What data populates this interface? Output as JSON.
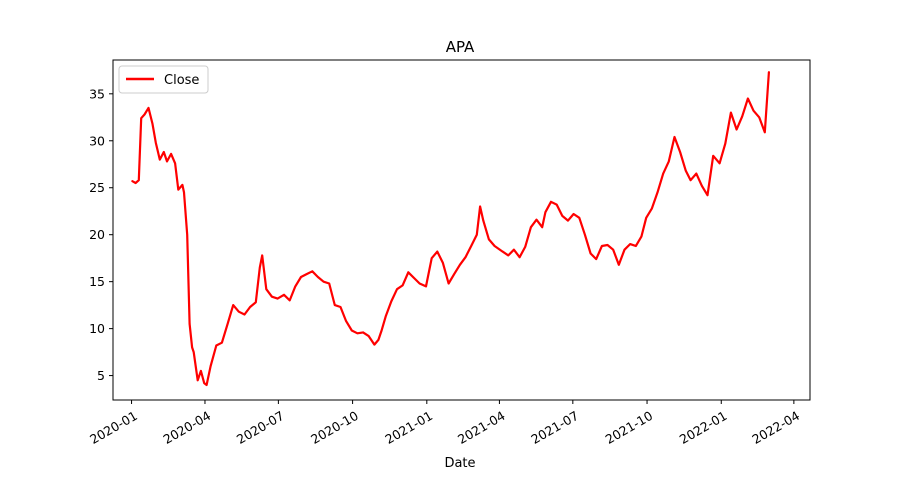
{
  "chart_data": {
    "type": "line",
    "title": "APA",
    "xlabel": "Date",
    "ylabel": "",
    "x_tick_labels": [
      "2020-01",
      "2020-04",
      "2020-07",
      "2020-10",
      "2021-01",
      "2021-04",
      "2021-07",
      "2021-10",
      "2022-01",
      "2022-04"
    ],
    "y_tick_labels": [
      "5",
      "10",
      "15",
      "20",
      "25",
      "30",
      "35"
    ],
    "y_ticks": [
      5,
      10,
      15,
      20,
      25,
      30,
      35
    ],
    "ylim": [
      2.4,
      38.6
    ],
    "xlim": [
      "2019-12-09",
      "2022-04-21"
    ],
    "legend_position": "upper-left",
    "grid": false,
    "series": [
      {
        "name": "Close",
        "color": "#ff0000",
        "x": [
          "2020-01-02",
          "2020-01-06",
          "2020-01-10",
          "2020-01-13",
          "2020-01-17",
          "2020-01-22",
          "2020-01-27",
          "2020-01-31",
          "2020-02-05",
          "2020-02-10",
          "2020-02-14",
          "2020-02-19",
          "2020-02-24",
          "2020-02-28",
          "2020-03-04",
          "2020-03-06",
          "2020-03-10",
          "2020-03-13",
          "2020-03-16",
          "2020-03-18",
          "2020-03-23",
          "2020-03-27",
          "2020-03-31",
          "2020-04-03",
          "2020-04-08",
          "2020-04-15",
          "2020-04-22",
          "2020-04-29",
          "2020-05-06",
          "2020-05-13",
          "2020-05-20",
          "2020-05-27",
          "2020-06-03",
          "2020-06-08",
          "2020-06-11",
          "2020-06-16",
          "2020-06-23",
          "2020-06-30",
          "2020-07-08",
          "2020-07-15",
          "2020-07-22",
          "2020-07-29",
          "2020-08-05",
          "2020-08-12",
          "2020-08-19",
          "2020-08-26",
          "2020-09-02",
          "2020-09-09",
          "2020-09-16",
          "2020-09-23",
          "2020-09-30",
          "2020-10-07",
          "2020-10-14",
          "2020-10-21",
          "2020-10-28",
          "2020-11-02",
          "2020-11-06",
          "2020-11-11",
          "2020-11-18",
          "2020-11-25",
          "2020-12-02",
          "2020-12-09",
          "2020-12-16",
          "2020-12-23",
          "2020-12-31",
          "2021-01-07",
          "2021-01-14",
          "2021-01-21",
          "2021-01-28",
          "2021-02-04",
          "2021-02-11",
          "2021-02-18",
          "2021-02-25",
          "2021-03-04",
          "2021-03-08",
          "2021-03-12",
          "2021-03-19",
          "2021-03-26",
          "2021-04-05",
          "2021-04-12",
          "2021-04-19",
          "2021-04-26",
          "2021-05-03",
          "2021-05-10",
          "2021-05-17",
          "2021-05-24",
          "2021-05-28",
          "2021-06-04",
          "2021-06-11",
          "2021-06-18",
          "2021-06-25",
          "2021-07-02",
          "2021-07-09",
          "2021-07-16",
          "2021-07-23",
          "2021-07-30",
          "2021-08-06",
          "2021-08-13",
          "2021-08-20",
          "2021-08-27",
          "2021-09-03",
          "2021-09-10",
          "2021-09-17",
          "2021-09-24",
          "2021-09-30",
          "2021-10-07",
          "2021-10-14",
          "2021-10-21",
          "2021-10-28",
          "2021-11-04",
          "2021-11-11",
          "2021-11-18",
          "2021-11-24",
          "2021-12-01",
          "2021-12-08",
          "2021-12-15",
          "2021-12-22",
          "2021-12-30",
          "2022-01-06",
          "2022-01-13",
          "2022-01-20",
          "2022-01-27",
          "2022-02-03",
          "2022-02-10",
          "2022-02-17",
          "2022-02-24",
          "2022-03-01"
        ],
        "values": [
          25.7,
          25.5,
          25.8,
          32.4,
          32.8,
          33.5,
          31.8,
          29.8,
          28.0,
          28.8,
          27.8,
          28.6,
          27.6,
          24.8,
          25.3,
          24.5,
          20.0,
          10.5,
          8.0,
          7.5,
          4.5,
          5.5,
          4.2,
          4.0,
          6.0,
          8.2,
          8.5,
          10.5,
          12.5,
          11.8,
          11.5,
          12.3,
          12.8,
          16.5,
          17.8,
          14.2,
          13.4,
          13.2,
          13.6,
          13.0,
          14.5,
          15.5,
          15.8,
          16.1,
          15.5,
          15.0,
          14.8,
          12.5,
          12.3,
          10.8,
          9.8,
          9.5,
          9.6,
          9.2,
          8.3,
          8.8,
          9.8,
          11.3,
          12.9,
          14.2,
          14.6,
          16.0,
          15.4,
          14.8,
          14.5,
          17.5,
          18.2,
          17.0,
          14.8,
          15.8,
          16.8,
          17.6,
          18.8,
          20.0,
          23.0,
          21.5,
          19.5,
          18.8,
          18.2,
          17.8,
          18.4,
          17.6,
          18.7,
          20.8,
          21.6,
          20.8,
          22.4,
          23.5,
          23.2,
          22.0,
          21.5,
          22.2,
          21.8,
          20.0,
          18.0,
          17.4,
          18.8,
          18.9,
          18.4,
          16.8,
          18.4,
          19.0,
          18.8,
          19.8,
          21.8,
          22.8,
          24.5,
          26.5,
          27.8,
          30.4,
          28.8,
          26.8,
          25.8,
          26.5,
          25.2,
          24.2,
          28.4,
          27.6,
          29.7,
          33.0,
          31.2,
          32.6,
          34.5,
          33.2,
          32.5,
          30.9,
          37.3
        ]
      }
    ]
  }
}
